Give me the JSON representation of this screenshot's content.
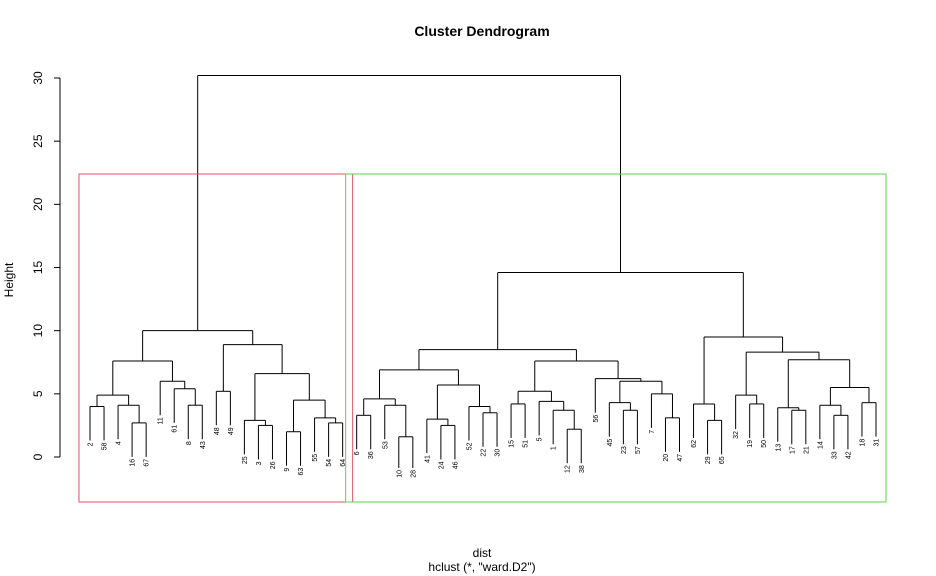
{
  "chart_data": {
    "type": "dendrogram",
    "title": "Cluster Dendrogram",
    "ylabel": "Height",
    "xlabel": "dist",
    "sublabel": "hclust (*, \"ward.D2\")",
    "ylim": [
      0,
      30
    ],
    "yticks": [
      0,
      5,
      10,
      15,
      20,
      25,
      30
    ],
    "leaf_order": [
      "2",
      "58",
      "4",
      "16",
      "67",
      "11",
      "61",
      "8",
      "43",
      "48",
      "49",
      "25",
      "3",
      "26",
      "9",
      "63",
      "55",
      "54",
      "64",
      "6",
      "36",
      "53",
      "10",
      "28",
      "41",
      "24",
      "46",
      "52",
      "22",
      "30",
      "15",
      "51",
      "5",
      "1",
      "12",
      "38",
      "56",
      "45",
      "23",
      "57",
      "7",
      "20",
      "47",
      "62",
      "29",
      "65",
      "32",
      "19",
      "50",
      "13",
      "17",
      "21",
      "14",
      "33",
      "42",
      "18",
      "31"
    ],
    "merges": [
      {
        "id": "L2",
        "left": "2",
        "right": "58",
        "height": 4.0
      },
      {
        "id": "L16",
        "left": "16",
        "right": "67",
        "height": 2.7
      },
      {
        "id": "L4",
        "left": "4",
        "right": "L16",
        "height": 4.1
      },
      {
        "id": "L2b",
        "left": "L2",
        "right": "L4",
        "height": 4.9
      },
      {
        "id": "L8",
        "left": "8",
        "right": "43",
        "height": 4.1
      },
      {
        "id": "L61",
        "left": "61",
        "right": "L8",
        "height": 5.4
      },
      {
        "id": "L11",
        "left": "11",
        "right": "L61",
        "height": 6.0
      },
      {
        "id": "A",
        "left": "L2b",
        "right": "L11",
        "height": 7.6
      },
      {
        "id": "L48",
        "left": "48",
        "right": "49",
        "height": 5.2
      },
      {
        "id": "L3",
        "left": "3",
        "right": "26",
        "height": 2.5
      },
      {
        "id": "L25",
        "left": "25",
        "right": "L3",
        "height": 2.9
      },
      {
        "id": "L9",
        "left": "9",
        "right": "63",
        "height": 2.0
      },
      {
        "id": "L54",
        "left": "54",
        "right": "64",
        "height": 2.7
      },
      {
        "id": "L55",
        "left": "55",
        "right": "L54",
        "height": 3.1
      },
      {
        "id": "L9b",
        "left": "L9",
        "right": "L55",
        "height": 4.5
      },
      {
        "id": "L25b",
        "left": "L25",
        "right": "L9b",
        "height": 6.6
      },
      {
        "id": "B",
        "left": "L48",
        "right": "L25b",
        "height": 8.9
      },
      {
        "id": "C1",
        "left": "A",
        "right": "B",
        "height": 10.0
      },
      {
        "id": "M6",
        "left": "6",
        "right": "36",
        "height": 3.3
      },
      {
        "id": "M10",
        "left": "10",
        "right": "28",
        "height": 1.6
      },
      {
        "id": "M53",
        "left": "53",
        "right": "M10",
        "height": 4.1
      },
      {
        "id": "M6b",
        "left": "M6",
        "right": "M53",
        "height": 4.6
      },
      {
        "id": "M24",
        "left": "24",
        "right": "46",
        "height": 2.5
      },
      {
        "id": "M41",
        "left": "41",
        "right": "M24",
        "height": 3.0
      },
      {
        "id": "M22",
        "left": "22",
        "right": "30",
        "height": 3.5
      },
      {
        "id": "M52",
        "left": "52",
        "right": "M22",
        "height": 4.0
      },
      {
        "id": "M41b",
        "left": "M41",
        "right": "M52",
        "height": 5.7
      },
      {
        "id": "M6c",
        "left": "M6b",
        "right": "M41b",
        "height": 6.9
      },
      {
        "id": "M15",
        "left": "15",
        "right": "51",
        "height": 4.2
      },
      {
        "id": "M12",
        "left": "12",
        "right": "38",
        "height": 2.2
      },
      {
        "id": "M1",
        "left": "1",
        "right": "M12",
        "height": 3.7
      },
      {
        "id": "M5",
        "left": "5",
        "right": "M1",
        "height": 4.4
      },
      {
        "id": "M15b",
        "left": "M15",
        "right": "M5",
        "height": 5.2
      },
      {
        "id": "M23",
        "left": "23",
        "right": "57",
        "height": 3.7
      },
      {
        "id": "M45",
        "left": "45",
        "right": "M23",
        "height": 4.3
      },
      {
        "id": "M20",
        "left": "20",
        "right": "47",
        "height": 3.1
      },
      {
        "id": "M7",
        "left": "7",
        "right": "M20",
        "height": 5.0
      },
      {
        "id": "M45b",
        "left": "M45",
        "right": "M7",
        "height": 6.0
      },
      {
        "id": "M56",
        "left": "56",
        "right": "M45b",
        "height": 6.2
      },
      {
        "id": "M15c",
        "left": "M15b",
        "right": "M56",
        "height": 7.6
      },
      {
        "id": "M",
        "left": "M6c",
        "right": "M15c",
        "height": 8.5
      },
      {
        "id": "R29",
        "left": "29",
        "right": "65",
        "height": 2.9
      },
      {
        "id": "R62",
        "left": "62",
        "right": "R29",
        "height": 4.2
      },
      {
        "id": "R19",
        "left": "19",
        "right": "50",
        "height": 4.2
      },
      {
        "id": "R32",
        "left": "32",
        "right": "R19",
        "height": 4.9
      },
      {
        "id": "R17",
        "left": "17",
        "right": "21",
        "height": 3.7
      },
      {
        "id": "R13",
        "left": "13",
        "right": "R17",
        "height": 3.9
      },
      {
        "id": "R33",
        "left": "33",
        "right": "42",
        "height": 3.3
      },
      {
        "id": "R14",
        "left": "14",
        "right": "R33",
        "height": 4.1
      },
      {
        "id": "R18",
        "left": "18",
        "right": "31",
        "height": 4.3
      },
      {
        "id": "R14b",
        "left": "R14",
        "right": "R18",
        "height": 5.5
      },
      {
        "id": "R13b",
        "left": "R13",
        "right": "R14b",
        "height": 7.7
      },
      {
        "id": "R32b",
        "left": "R32",
        "right": "R13b",
        "height": 8.3
      },
      {
        "id": "R",
        "left": "R62",
        "right": "R32b",
        "height": 9.5
      },
      {
        "id": "C2",
        "left": "M",
        "right": "R",
        "height": 14.6
      },
      {
        "id": "ROOT",
        "left": "C1",
        "right": "C2",
        "height": 30.2
      }
    ],
    "clusters": [
      {
        "from": "2",
        "to": "64",
        "color": "#DF536B"
      },
      {
        "from": "6",
        "to": "31",
        "color": "#61D04F"
      }
    ],
    "rect_height": 22.4
  }
}
